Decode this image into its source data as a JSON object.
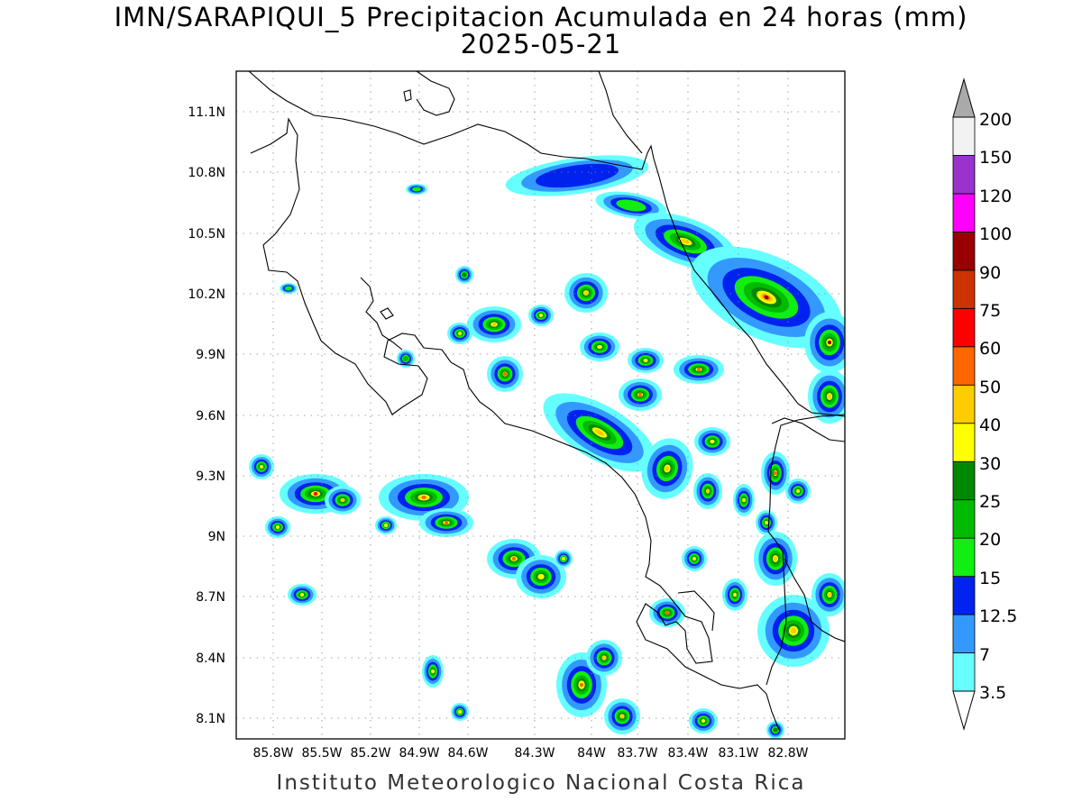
{
  "header": {
    "title_line1": "IMN/SARAPIQUI_5 Precipitacion Acumulada en 24 horas (mm)",
    "title_line2": "2025-05-21"
  },
  "footer": {
    "credit": "Instituto Meteorologico Nacional Costa Rica"
  },
  "map": {
    "lat_ticks": [
      "11.1N",
      "10.8N",
      "10.5N",
      "10.2N",
      "9.9N",
      "9.6N",
      "9.3N",
      "9N",
      "8.7N",
      "8.4N",
      "8.1N"
    ],
    "lon_ticks": [
      "85.8W",
      "85.5W",
      "85.2W",
      "84.9W",
      "84.6W",
      "84.3W",
      "84W",
      "83.7W",
      "83.4W",
      "83.1W",
      "82.8W"
    ],
    "grid": true,
    "grid_style": "dotted"
  },
  "colorbar": {
    "levels": [
      "3.5",
      "7",
      "12.5",
      "15",
      "20",
      "25",
      "30",
      "40",
      "50",
      "60",
      "75",
      "90",
      "100",
      "120",
      "150",
      "200"
    ],
    "colors": [
      "#66ffff",
      "#3399ff",
      "#0022ee",
      "#11ee11",
      "#00bb00",
      "#008800",
      "#ffff00",
      "#ffcc00",
      "#ff6600",
      "#ff0000",
      "#cc3300",
      "#990000",
      "#ff00ff",
      "#9933cc",
      "#f2f2f2"
    ],
    "over_color": "#aaaaaa",
    "under_color": "#ffffff"
  }
}
